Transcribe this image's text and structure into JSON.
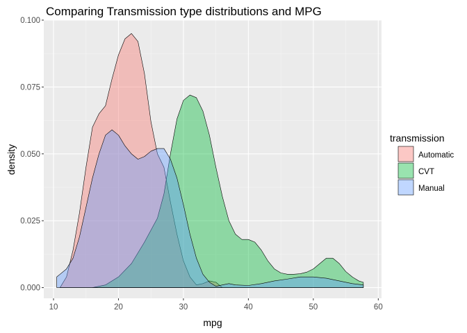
{
  "chart_data": {
    "type": "area",
    "title": "Comparing Transmission type distributions and MPG",
    "xlabel": "mpg",
    "ylabel": "density",
    "xlim": [
      8.5,
      60.5
    ],
    "ylim": [
      -0.004,
      0.1
    ],
    "x_ticks": [
      10,
      20,
      30,
      40,
      50,
      60
    ],
    "x_tick_labels": [
      "10",
      "20",
      "30",
      "40",
      "50",
      "60"
    ],
    "y_ticks": [
      0,
      0.025,
      0.05,
      0.075,
      0.1
    ],
    "y_tick_labels": [
      "0.000",
      "0.025",
      "0.050",
      "0.075",
      "0.100"
    ],
    "grid": true,
    "legend": {
      "title": "transmission",
      "position": "right"
    },
    "series": [
      {
        "name": "Automatic",
        "color": "#F8766D",
        "x": [
          11,
          12,
          13,
          14,
          15,
          16,
          17,
          18,
          19,
          20,
          21,
          22,
          23,
          24,
          25,
          26,
          27,
          28,
          29,
          30,
          31,
          32,
          33,
          34,
          35,
          36
        ],
        "y": [
          0.0,
          0.004,
          0.014,
          0.028,
          0.045,
          0.06,
          0.065,
          0.068,
          0.078,
          0.087,
          0.093,
          0.095,
          0.092,
          0.08,
          0.062,
          0.05,
          0.045,
          0.032,
          0.02,
          0.01,
          0.004,
          0.001,
          0.0015,
          0.0025,
          0.002,
          0.0
        ]
      },
      {
        "name": "CVT",
        "color": "#00BA38",
        "x": [
          16,
          18,
          20,
          22,
          24,
          26,
          27,
          28,
          29,
          30,
          31,
          32,
          33,
          34,
          35,
          36,
          37,
          38,
          39,
          40,
          41,
          42,
          43,
          44,
          45,
          46,
          47,
          48,
          49,
          50,
          51,
          52,
          53,
          54,
          55,
          56,
          57,
          57.7
        ],
        "y": [
          0.0,
          0.001,
          0.004,
          0.009,
          0.017,
          0.026,
          0.035,
          0.05,
          0.063,
          0.07,
          0.072,
          0.071,
          0.066,
          0.057,
          0.045,
          0.034,
          0.025,
          0.02,
          0.018,
          0.018,
          0.017,
          0.014,
          0.01,
          0.007,
          0.0055,
          0.005,
          0.005,
          0.0052,
          0.0058,
          0.007,
          0.009,
          0.011,
          0.011,
          0.009,
          0.006,
          0.004,
          0.0025,
          0.002
        ]
      },
      {
        "name": "Manual",
        "color": "#619CFF",
        "x": [
          10.5,
          11,
          12,
          13,
          14,
          15,
          16,
          17,
          18,
          19,
          20,
          21,
          22,
          23,
          24,
          25,
          26,
          27,
          28,
          29,
          30,
          31,
          32,
          33,
          34,
          35,
          36,
          37,
          38,
          40,
          42,
          44,
          46,
          48,
          50,
          52,
          54,
          56,
          57.7
        ],
        "y": [
          0.004,
          0.005,
          0.007,
          0.011,
          0.019,
          0.03,
          0.041,
          0.05,
          0.057,
          0.059,
          0.057,
          0.053,
          0.05,
          0.048,
          0.049,
          0.051,
          0.052,
          0.052,
          0.048,
          0.041,
          0.031,
          0.02,
          0.011,
          0.005,
          0.002,
          0.0005,
          0.001,
          0.0015,
          0.001,
          0.0008,
          0.0015,
          0.0025,
          0.0032,
          0.004,
          0.004,
          0.0035,
          0.0025,
          0.0015,
          0.001
        ]
      }
    ]
  }
}
